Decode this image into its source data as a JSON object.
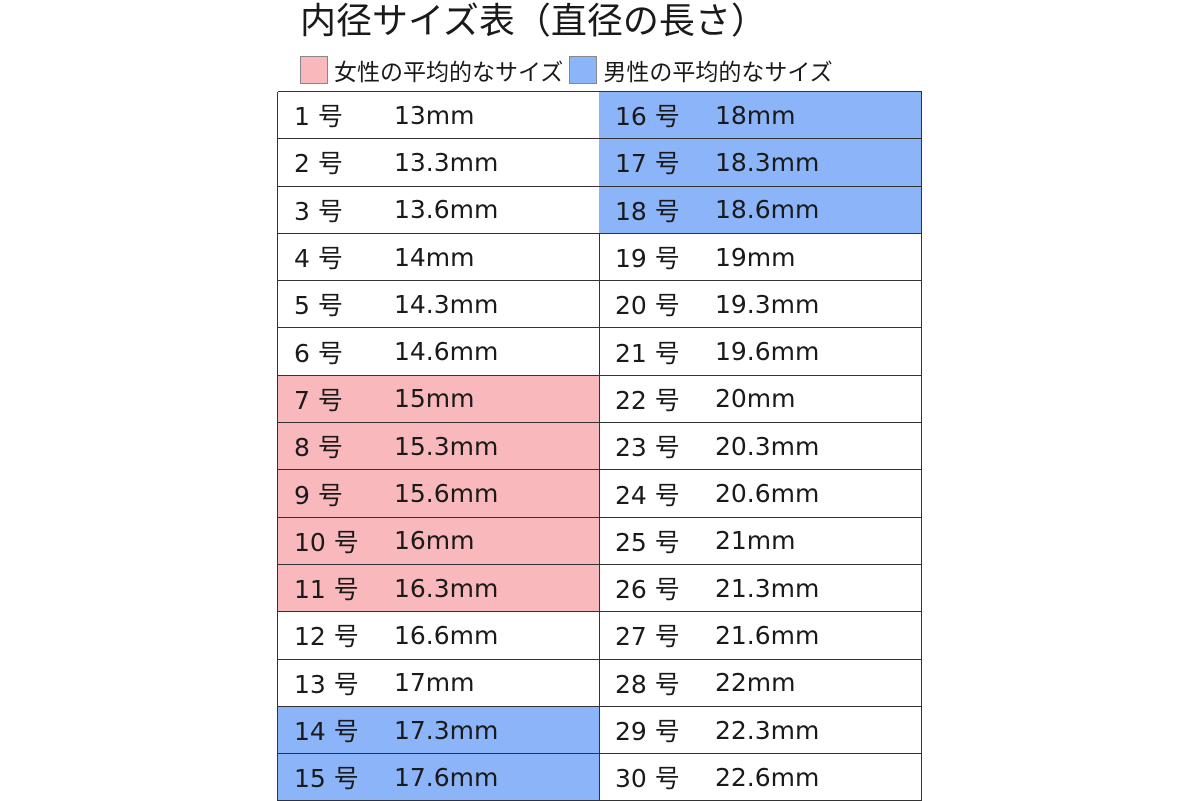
{
  "title": "内径サイズ表（直径の長さ）",
  "legend": [
    {
      "label": "女性の平均的なサイズ",
      "color": "#f9b8bb"
    },
    {
      "label": "男性の平均的なサイズ",
      "color": "#8cb4f8"
    }
  ],
  "colors": {
    "female": "#f9b8bb",
    "male": "#8cb4f8"
  },
  "rows": [
    {
      "size": "1 号",
      "mm": "13mm",
      "hl": ""
    },
    {
      "size": "2 号",
      "mm": "13.3mm",
      "hl": ""
    },
    {
      "size": "3 号",
      "mm": "13.6mm",
      "hl": ""
    },
    {
      "size": "4 号",
      "mm": "14mm",
      "hl": ""
    },
    {
      "size": "5 号",
      "mm": "14.3mm",
      "hl": ""
    },
    {
      "size": "6 号",
      "mm": "14.6mm",
      "hl": ""
    },
    {
      "size": "7 号",
      "mm": "15mm",
      "hl": "female"
    },
    {
      "size": "8 号",
      "mm": "15.3mm",
      "hl": "female"
    },
    {
      "size": "9 号",
      "mm": "15.6mm",
      "hl": "female"
    },
    {
      "size": "10 号",
      "mm": "16mm",
      "hl": "female"
    },
    {
      "size": "11 号",
      "mm": "16.3mm",
      "hl": "female"
    },
    {
      "size": "12 号",
      "mm": "16.6mm",
      "hl": ""
    },
    {
      "size": "13 号",
      "mm": "17mm",
      "hl": ""
    },
    {
      "size": "14 号",
      "mm": "17.3mm",
      "hl": "male"
    },
    {
      "size": "15 号",
      "mm": "17.6mm",
      "hl": "male"
    },
    {
      "size": "16 号",
      "mm": "18mm",
      "hl": "male"
    },
    {
      "size": "17 号",
      "mm": "18.3mm",
      "hl": "male"
    },
    {
      "size": "18 号",
      "mm": "18.6mm",
      "hl": "male"
    },
    {
      "size": "19 号",
      "mm": "19mm",
      "hl": ""
    },
    {
      "size": "20 号",
      "mm": "19.3mm",
      "hl": ""
    },
    {
      "size": "21 号",
      "mm": "19.6mm",
      "hl": ""
    },
    {
      "size": "22 号",
      "mm": "20mm",
      "hl": ""
    },
    {
      "size": "23 号",
      "mm": "20.3mm",
      "hl": ""
    },
    {
      "size": "24 号",
      "mm": "20.6mm",
      "hl": ""
    },
    {
      "size": "25 号",
      "mm": "21mm",
      "hl": ""
    },
    {
      "size": "26 号",
      "mm": "21.3mm",
      "hl": ""
    },
    {
      "size": "27 号",
      "mm": "21.6mm",
      "hl": ""
    },
    {
      "size": "28 号",
      "mm": "22mm",
      "hl": ""
    },
    {
      "size": "29 号",
      "mm": "22.3mm",
      "hl": ""
    },
    {
      "size": "30 号",
      "mm": "22.6mm",
      "hl": ""
    }
  ]
}
